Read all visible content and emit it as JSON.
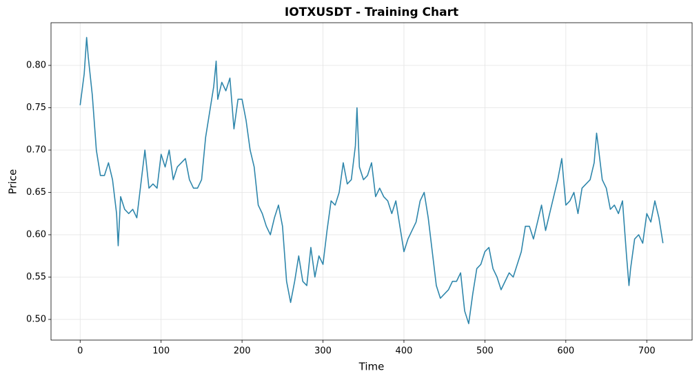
{
  "chart_data": {
    "type": "line",
    "title": "IOTXUSDT - Training Chart",
    "x_label": "Time",
    "y_label": "Price",
    "color": "#2e86ab",
    "grid": true,
    "xlim": [
      -36,
      756
    ],
    "ylim": [
      0.4756,
      0.8504
    ],
    "xticks": [
      0,
      100,
      200,
      300,
      400,
      500,
      600,
      700
    ],
    "yticks": [
      {
        "value": 0.5,
        "label": "0.50"
      },
      0.55,
      {
        "value": 0.6,
        "label": "0.60"
      },
      0.65,
      {
        "value": 0.7,
        "label": "0.70"
      },
      0.75,
      {
        "value": 0.8,
        "label": "0.80"
      }
    ],
    "x": [
      0,
      5,
      8,
      10,
      15,
      20,
      25,
      30,
      35,
      40,
      45,
      47,
      50,
      55,
      60,
      65,
      70,
      75,
      80,
      85,
      90,
      95,
      100,
      105,
      110,
      115,
      120,
      125,
      130,
      135,
      140,
      145,
      150,
      155,
      160,
      165,
      168,
      170,
      175,
      180,
      185,
      190,
      195,
      200,
      205,
      210,
      215,
      220,
      225,
      230,
      235,
      240,
      245,
      250,
      255,
      260,
      265,
      270,
      275,
      280,
      285,
      290,
      295,
      300,
      305,
      310,
      315,
      320,
      325,
      330,
      335,
      340,
      342,
      345,
      350,
      355,
      360,
      365,
      370,
      375,
      380,
      385,
      390,
      395,
      400,
      405,
      410,
      415,
      420,
      425,
      430,
      435,
      440,
      445,
      450,
      455,
      460,
      465,
      470,
      475,
      480,
      485,
      490,
      495,
      500,
      505,
      510,
      515,
      520,
      525,
      530,
      535,
      540,
      545,
      550,
      555,
      560,
      565,
      570,
      575,
      580,
      585,
      590,
      595,
      600,
      605,
      610,
      615,
      620,
      625,
      630,
      635,
      638,
      640,
      645,
      650,
      655,
      660,
      665,
      670,
      675,
      678,
      680,
      685,
      690,
      695,
      700,
      705,
      710,
      715,
      720
    ],
    "values": [
      0.753,
      0.79,
      0.833,
      0.81,
      0.765,
      0.7,
      0.67,
      0.67,
      0.685,
      0.665,
      0.625,
      0.587,
      0.645,
      0.63,
      0.625,
      0.63,
      0.62,
      0.66,
      0.7,
      0.655,
      0.66,
      0.655,
      0.695,
      0.68,
      0.7,
      0.665,
      0.68,
      0.685,
      0.69,
      0.665,
      0.655,
      0.655,
      0.665,
      0.715,
      0.745,
      0.775,
      0.805,
      0.76,
      0.78,
      0.77,
      0.785,
      0.725,
      0.76,
      0.76,
      0.735,
      0.7,
      0.68,
      0.635,
      0.625,
      0.61,
      0.6,
      0.62,
      0.635,
      0.61,
      0.545,
      0.52,
      0.545,
      0.575,
      0.545,
      0.54,
      0.585,
      0.55,
      0.575,
      0.565,
      0.605,
      0.64,
      0.635,
      0.65,
      0.685,
      0.66,
      0.665,
      0.705,
      0.75,
      0.68,
      0.665,
      0.67,
      0.685,
      0.645,
      0.655,
      0.645,
      0.64,
      0.625,
      0.64,
      0.61,
      0.58,
      0.595,
      0.605,
      0.615,
      0.64,
      0.65,
      0.62,
      0.58,
      0.54,
      0.525,
      0.53,
      0.535,
      0.545,
      0.545,
      0.555,
      0.51,
      0.495,
      0.53,
      0.56,
      0.565,
      0.58,
      0.585,
      0.56,
      0.55,
      0.535,
      0.545,
      0.555,
      0.55,
      0.565,
      0.58,
      0.61,
      0.61,
      0.595,
      0.615,
      0.635,
      0.605,
      0.625,
      0.645,
      0.665,
      0.69,
      0.635,
      0.64,
      0.65,
      0.625,
      0.655,
      0.66,
      0.665,
      0.685,
      0.72,
      0.705,
      0.665,
      0.655,
      0.63,
      0.635,
      0.625,
      0.64,
      0.575,
      0.54,
      0.56,
      0.595,
      0.6,
      0.59,
      0.625,
      0.615,
      0.64,
      0.62,
      0.59
    ]
  }
}
